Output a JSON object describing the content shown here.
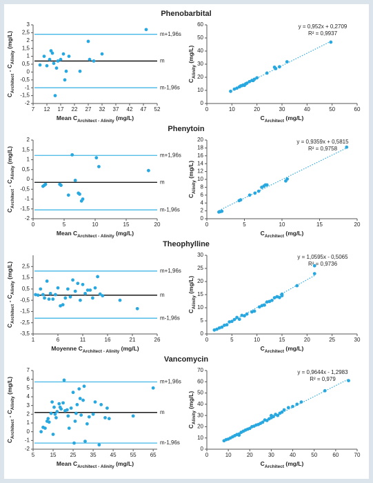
{
  "chart_data": [
    {
      "type": "scatter",
      "title": "Phenobarbital",
      "color": "#29a8e0",
      "xlabel": [
        "Mean C",
        "Architect - Alinity",
        " (mg/L)"
      ],
      "ylabel": [
        "C",
        "Architect",
        " - C",
        "Alinity",
        " (mg/L)"
      ],
      "xlim": [
        7,
        52
      ],
      "xticks": [
        7,
        12,
        17,
        22,
        27,
        32,
        37,
        42,
        47,
        52
      ],
      "ylim": [
        -2,
        3
      ],
      "yticks": [
        -2,
        {
          "value": -1.5,
          "label": "-1,5"
        },
        -1,
        {
          "value": -0.5,
          "label": "-0,5"
        },
        0,
        {
          "value": 0.5,
          "label": "0,5"
        },
        1,
        {
          "value": 1.5,
          "label": "1,5"
        },
        2,
        {
          "value": 2.5,
          "label": "2,5"
        },
        3
      ],
      "lines": [
        {
          "value": 2.4,
          "label": "m+1,96s",
          "color": "#41b6e6"
        },
        {
          "value": 0.7,
          "label": "m",
          "color": "#000000"
        },
        {
          "value": -1.0,
          "label": "m-1,96s",
          "color": "#41b6e6"
        }
      ],
      "x": [
        9.5,
        11,
        12,
        13,
        13.5,
        14,
        14.5,
        15,
        15.5,
        16,
        17,
        18,
        18.5,
        19,
        20,
        24,
        27,
        27.5,
        29,
        32,
        48
      ],
      "values": [
        0.45,
        1.0,
        0.4,
        0.8,
        1.35,
        1.2,
        0.55,
        -1.5,
        0.25,
        0.7,
        0.8,
        1.15,
        -0.5,
        0.05,
        1.0,
        0.05,
        1.95,
        0.8,
        0.7,
        1.15,
        2.7
      ]
    },
    {
      "type": "scatter",
      "color": "#29a8e0",
      "xlabel": [
        "C",
        "Architect",
        " (mg/L)"
      ],
      "ylabel": [
        "C",
        "Alinity",
        " (mg/L)"
      ],
      "xlim": [
        0,
        60
      ],
      "xticks": [
        0,
        10,
        20,
        30,
        40,
        50,
        60
      ],
      "ylim": [
        0,
        60
      ],
      "yticks": [
        0,
        10,
        20,
        30,
        40,
        50,
        60
      ],
      "trendline": {
        "slope": 0.952,
        "intercept": 0.2709
      },
      "equation": "y = 0,952x + 0,2709",
      "r2": "R² = 0,9937",
      "x": [
        9.5,
        11,
        12,
        13,
        13.5,
        14,
        14.5,
        15,
        15.5,
        16,
        17,
        18,
        18.5,
        19,
        20,
        24,
        27,
        27.5,
        29,
        32,
        49.5
      ],
      "values": [
        9.3,
        11,
        11.7,
        12.7,
        13.4,
        13.6,
        14.1,
        13.8,
        15,
        15.5,
        16.7,
        17.6,
        17.5,
        18.5,
        19.6,
        23.2,
        27.7,
        26.6,
        28,
        31.8,
        46.8
      ]
    },
    {
      "type": "scatter",
      "title": "Phenytoin",
      "color": "#29a8e0",
      "xlabel": [
        "Mean C",
        "Architect - Alinity",
        " (mg/L)"
      ],
      "ylabel": [
        "C",
        "Architect",
        " - C",
        "Alinity",
        " (mg/L)"
      ],
      "xlim": [
        0,
        20
      ],
      "xticks": [
        0,
        5,
        10,
        15,
        20
      ],
      "ylim": [
        -2,
        2
      ],
      "yticks": [
        -2,
        {
          "value": -1.5,
          "label": "-1,5"
        },
        -1,
        {
          "value": -0.5,
          "label": "-0,5"
        },
        0,
        {
          "value": 0.5,
          "label": "0,5"
        },
        1,
        {
          "value": 1.5,
          "label": "1,5"
        },
        2
      ],
      "lines": [
        {
          "value": 1.22,
          "label": "m+1,96s",
          "color": "#41b6e6"
        },
        {
          "value": -0.15,
          "label": "m",
          "color": "#000000"
        },
        {
          "value": -1.55,
          "label": "m-1,96s",
          "color": "#41b6e6"
        }
      ],
      "x": [
        1.6,
        1.8,
        2,
        4.3,
        4.5,
        5.7,
        6.3,
        6.8,
        7.3,
        7.5,
        7.8,
        8,
        10.2,
        10.6,
        18.6
      ],
      "values": [
        -0.35,
        -0.3,
        -0.25,
        -0.25,
        -0.3,
        -0.8,
        1.25,
        -0.05,
        -0.7,
        -0.75,
        -1.1,
        -1.0,
        1.1,
        0.65,
        0.45
      ]
    },
    {
      "type": "scatter",
      "color": "#29a8e0",
      "xlabel": [
        "C",
        "Architect",
        " (mg/L)"
      ],
      "ylabel": [
        "C",
        "Alinity",
        " (mg/L)"
      ],
      "xlim": [
        0,
        20
      ],
      "xticks": [
        0,
        5,
        10,
        15,
        20
      ],
      "ylim": [
        0,
        20
      ],
      "yticks": [
        0,
        2,
        4,
        6,
        8,
        10,
        12,
        14,
        16,
        18,
        20
      ],
      "trendline": {
        "slope": 0.9359,
        "intercept": 0.5815
      },
      "equation": "y = 0,9359x + 0,5815",
      "r2": "R² = 0,9758",
      "x": [
        1.6,
        1.8,
        2,
        4.3,
        4.5,
        5.7,
        6.4,
        6.9,
        7.3,
        7.6,
        7.8,
        8,
        10.5,
        10.7,
        18.6
      ],
      "values": [
        1.7,
        1.8,
        1.9,
        4.6,
        4.8,
        6,
        6.5,
        7,
        8,
        8.3,
        8.6,
        8.6,
        9.6,
        10.1,
        18.2
      ]
    },
    {
      "type": "scatter",
      "title": "Theophylline",
      "color": "#29a8e0",
      "xlabel": [
        "Moyenne C",
        "Architect - Alinity",
        " (mg/L)"
      ],
      "ylabel": [
        "C",
        "Architect",
        " - C",
        "Alinity",
        " (mg/L)"
      ],
      "xlim": [
        1,
        26
      ],
      "xticks": [
        1,
        6,
        11,
        16,
        21,
        26
      ],
      "ylim": [
        -3.5,
        3.5
      ],
      "yticks": [
        {
          "value": -3.5,
          "label": "-3,5"
        },
        {
          "value": -2.5,
          "label": "-2,5"
        },
        {
          "value": -1.5,
          "label": "-1,5"
        },
        {
          "value": -0.5,
          "label": "-0,5"
        },
        {
          "value": 0.5,
          "label": "0,5"
        },
        {
          "value": 1.5,
          "label": "1,5"
        },
        {
          "value": 2.5,
          "label": "2,5"
        }
      ],
      "lines": [
        {
          "value": 2.1,
          "label": "m+1,96s",
          "color": "#41b6e6"
        },
        {
          "value": -0.05,
          "label": "m",
          "color": "#000000"
        },
        {
          "value": -2.1,
          "label": "m-1,96s",
          "color": "#41b6e6"
        }
      ],
      "x": [
        1.5,
        2,
        2.5,
        3,
        3.3,
        3.8,
        4.2,
        4.5,
        5,
        5.5,
        6,
        6.5,
        7,
        7.5,
        8,
        8.5,
        9,
        9.5,
        10,
        10.5,
        11,
        11.5,
        12,
        12.5,
        13,
        13.5,
        14,
        14.5,
        15,
        18.5,
        22
      ],
      "values": [
        0,
        -0.05,
        0.5,
        0,
        -0.3,
        1.2,
        -0.4,
        0.1,
        -0.4,
        0,
        0.6,
        -1.0,
        -0.9,
        -0.3,
        0.5,
        -0.2,
        1.3,
        0.3,
        1.0,
        -0.5,
        0.9,
        0.1,
        0.4,
        0.4,
        -0.3,
        0.6,
        1.6,
        0.05,
        -0.1,
        -0.5,
        -1.25
      ]
    },
    {
      "type": "scatter",
      "color": "#29a8e0",
      "xlabel": [
        "C",
        "Architect",
        " (mg/L)"
      ],
      "ylabel": [
        "C",
        "Alinity",
        " (mg/L)"
      ],
      "xlim": [
        0,
        30
      ],
      "xticks": [
        0,
        5,
        10,
        15,
        20,
        25,
        30
      ],
      "ylim": [
        0,
        30
      ],
      "yticks": [
        0,
        5,
        10,
        15,
        20,
        25,
        30
      ],
      "trendline": {
        "slope": 1.0595,
        "intercept": -0.5065
      },
      "equation": "y = 1,0595x - 0,5065",
      "r2": "R² = 0,9736",
      "x": [
        1.5,
        2,
        2.5,
        3,
        3.5,
        4,
        4.5,
        5,
        5.5,
        6,
        6.5,
        7,
        7.5,
        8,
        9,
        9.5,
        10.5,
        11,
        11.5,
        12,
        12.5,
        13,
        13.5,
        14,
        14.5,
        15,
        15,
        18,
        21.5,
        21.5
      ],
      "values": [
        1.5,
        1.8,
        2.3,
        2.6,
        3.3,
        3.5,
        4.6,
        4.8,
        5.5,
        6.3,
        5.6,
        7.1,
        6.9,
        7.6,
        8.4,
        8.7,
        10.3,
        10.8,
        11,
        12.2,
        12.4,
        12.8,
        13.8,
        14.2,
        13.9,
        14.6,
        15.2,
        18.4,
        23,
        26
      ]
    },
    {
      "type": "scatter",
      "title": "Vancomycin",
      "color": "#29a8e0",
      "xlabel": [
        "Mean C",
        "Architect - Alinity",
        " (mg/L)"
      ],
      "ylabel": [
        "C",
        "Architect",
        " - C",
        "Alinity",
        " (mg/L)"
      ],
      "xlim": [
        5,
        67
      ],
      "xticks": [
        5,
        15,
        25,
        35,
        45,
        55,
        65
      ],
      "ylim": [
        -2,
        7
      ],
      "yticks": [
        -2,
        -1,
        0,
        1,
        2,
        3,
        4,
        5,
        6,
        7
      ],
      "lines": [
        {
          "value": 5.7,
          "label": "m+1,96s",
          "color": "#41b6e6"
        },
        {
          "value": 2.2,
          "label": "m",
          "color": "#000000"
        },
        {
          "value": -1.3,
          "label": "m-1,96s",
          "color": "#41b6e6"
        }
      ],
      "x": [
        9,
        10,
        11,
        12,
        12.5,
        13,
        14,
        14.5,
        15,
        15.5,
        16,
        16.5,
        17,
        18,
        18.5,
        19,
        20,
        20.5,
        21,
        22,
        22.5,
        23,
        24,
        25,
        25.5,
        26,
        26.5,
        27,
        28,
        28.5,
        29,
        30,
        30.5,
        31,
        32,
        33,
        35,
        36,
        38,
        39,
        41,
        42,
        43,
        55,
        65
      ],
      "values": [
        0,
        0.5,
        0.4,
        1.2,
        1.5,
        1.1,
        2.1,
        3.4,
        -0.3,
        2.8,
        2.0,
        1.6,
        2.3,
        3.2,
        2.8,
        2.6,
        3.3,
        5.9,
        2.4,
        2.5,
        1.8,
        0.4,
        2.7,
        4.5,
        -1.3,
        1.2,
        2.1,
        3.1,
        4.9,
        3.8,
        1.9,
        3.6,
        5.2,
        -1.1,
        0.9,
        1.7,
        2.0,
        3.4,
        -1.5,
        3.1,
        1.6,
        2.7,
        1.5,
        1.8,
        5.0
      ]
    },
    {
      "type": "scatter",
      "color": "#29a8e0",
      "xlabel": [
        "C",
        "Architect",
        " (mg/L)"
      ],
      "ylabel": [
        "C",
        "Alinity",
        " (mg/L)"
      ],
      "xlim": [
        0,
        70
      ],
      "xticks": [
        0,
        10,
        20,
        30,
        40,
        50,
        60,
        70
      ],
      "ylim": [
        0,
        70
      ],
      "yticks": [
        0,
        10,
        20,
        30,
        40,
        50,
        60,
        70
      ],
      "trendline": {
        "slope": 0.9644,
        "intercept": -1.2983
      },
      "equation": "y = 0,9644x - 1,2983",
      "r2": "R² = 0,979",
      "x": [
        8,
        9,
        10,
        11,
        12,
        13,
        14,
        15,
        15,
        16,
        17,
        18,
        19,
        20,
        21,
        22,
        23,
        24,
        25,
        26,
        27,
        28,
        29,
        30,
        30,
        31,
        32,
        33,
        34,
        35,
        36,
        38,
        40,
        42,
        44,
        55,
        66
      ],
      "values": [
        7.5,
        8.5,
        9,
        10,
        11,
        12,
        13,
        13.5,
        12.5,
        15,
        16,
        17,
        17.8,
        18.5,
        20,
        20.5,
        21.5,
        22,
        23,
        24,
        26,
        25.5,
        27,
        28,
        30,
        29,
        31,
        30,
        32,
        33,
        35,
        37,
        38,
        40,
        42,
        52,
        61
      ]
    }
  ]
}
